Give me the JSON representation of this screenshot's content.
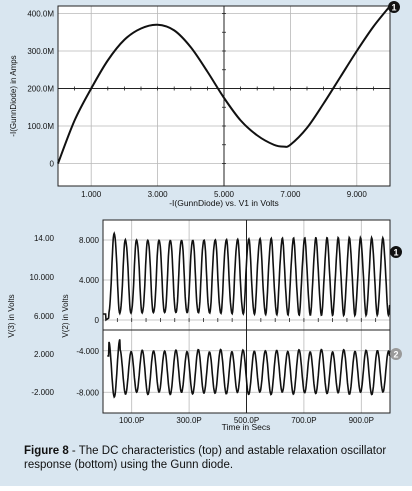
{
  "colors": {
    "background": "#d9e6f0",
    "plot_background": "#ffffff",
    "grid": "#b8b8b8",
    "trace": "#111111",
    "marker_1": "#111111",
    "marker_2": "#9a9a9a"
  },
  "caption": {
    "figure_label": "Figure 8",
    "text": " - The DC characteristics (top) and astable relaxation oscillator response (bottom) using the Gunn diode."
  },
  "chart_data": [
    {
      "type": "line",
      "title": "",
      "xlabel": "-I(GunnDiode) vs. V1 in Volts",
      "ylabel": "-I(GunnDiode) in Amps",
      "xlim": [
        0,
        10
      ],
      "ylim": [
        -0.06,
        0.42
      ],
      "x_ticks": [
        1,
        3,
        5,
        7,
        9
      ],
      "x_tick_labels": [
        "1.000",
        "3.000",
        "5.000",
        "7.000",
        "9.000"
      ],
      "y_ticks": [
        0,
        0.1,
        0.2,
        0.3,
        0.4
      ],
      "y_tick_labels": [
        "0",
        "100.0M",
        "200.0M",
        "300.0M",
        "400.0M"
      ],
      "grid": true,
      "marker": "1",
      "series": [
        {
          "x": [
            0,
            0.5,
            1.0,
            1.5,
            2.0,
            2.5,
            3.0,
            3.5,
            4.0,
            4.5,
            5.0,
            5.5,
            6.0,
            6.5,
            6.8,
            7.0,
            7.5,
            8.0,
            8.5,
            9.0,
            9.5,
            10.0
          ],
          "values": [
            0.0,
            0.115,
            0.2,
            0.275,
            0.33,
            0.36,
            0.37,
            0.355,
            0.31,
            0.245,
            0.175,
            0.115,
            0.075,
            0.05,
            0.045,
            0.05,
            0.095,
            0.16,
            0.23,
            0.3,
            0.365,
            0.42
          ]
        }
      ]
    },
    {
      "type": "line",
      "title": "",
      "xlabel": "Time in Secs",
      "ylabel": "V(3) in Volts",
      "ylabel2": "V(2) in Volts",
      "xlim": [
        0,
        1000
      ],
      "x_ticks": [
        100,
        300,
        500,
        700,
        900
      ],
      "x_tick_labels": [
        "100.0P",
        "300.0P",
        "500.0P",
        "700.0P",
        "900.0P"
      ],
      "grid": true,
      "panels": [
        {
          "marker": "1",
          "ylabel": "V(2) in Volts",
          "ylim": [
            -1,
            10
          ],
          "y_ticks": [
            0,
            4,
            8
          ],
          "y_tick_labels": [
            "0",
            "4.000",
            "8.000"
          ],
          "outer_y_ticks": [
            6,
            10,
            14
          ],
          "outer_y_tick_labels": [
            "6.000",
            "10.000",
            "14.00"
          ],
          "oscillation": {
            "period": 39,
            "baseline": 0.6,
            "peak": 8.1,
            "first_peak": 8.7,
            "onset": 20
          }
        },
        {
          "marker": "2",
          "ylabel": "V(3) in Volts",
          "ylim": [
            -10,
            -2
          ],
          "y_ticks": [
            -8,
            -4
          ],
          "y_tick_labels": [
            "-8.000",
            "-4.000"
          ],
          "outer_y_ticks": [
            -2,
            2
          ],
          "outer_y_tick_labels": [
            "-2.000",
            "2.000"
          ],
          "oscillation": {
            "period": 39,
            "high": -4.0,
            "low": -8.1,
            "first_high": -3.0,
            "first_low": -8.5,
            "onset": 20
          }
        }
      ]
    }
  ]
}
